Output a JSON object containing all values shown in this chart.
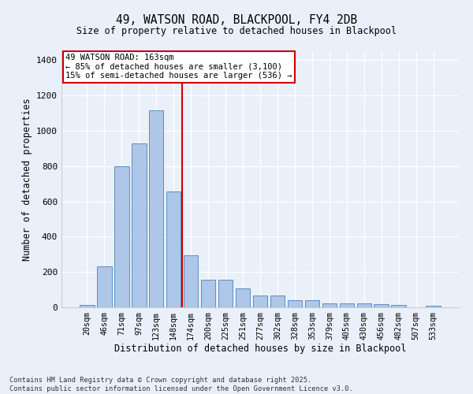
{
  "title_line1": "49, WATSON ROAD, BLACKPOOL, FY4 2DB",
  "title_line2": "Size of property relative to detached houses in Blackpool",
  "xlabel": "Distribution of detached houses by size in Blackpool",
  "ylabel": "Number of detached properties",
  "categories": [
    "20sqm",
    "46sqm",
    "71sqm",
    "97sqm",
    "123sqm",
    "148sqm",
    "174sqm",
    "200sqm",
    "225sqm",
    "251sqm",
    "277sqm",
    "302sqm",
    "328sqm",
    "353sqm",
    "379sqm",
    "405sqm",
    "430sqm",
    "456sqm",
    "482sqm",
    "507sqm",
    "533sqm"
  ],
  "bar_values": [
    15,
    230,
    800,
    930,
    1115,
    655,
    295,
    155,
    155,
    105,
    68,
    68,
    38,
    38,
    22,
    22,
    22,
    20,
    15,
    0,
    10
  ],
  "bar_color": "#aec6e8",
  "bar_edge_color": "#5a8fc0",
  "vline_x": 5.5,
  "vline_color": "#cc0000",
  "background_color": "#eaf0fa",
  "grid_color": "#ffffff",
  "annotation_line1": "49 WATSON ROAD: 163sqm",
  "annotation_line2": "← 85% of detached houses are smaller (3,100)",
  "annotation_line3": "15% of semi-detached houses are larger (536) →",
  "footnote_line1": "Contains HM Land Registry data © Crown copyright and database right 2025.",
  "footnote_line2": "Contains public sector information licensed under the Open Government Licence v3.0.",
  "ylim": [
    0,
    1450
  ],
  "yticks": [
    0,
    200,
    400,
    600,
    800,
    1000,
    1200,
    1400
  ]
}
